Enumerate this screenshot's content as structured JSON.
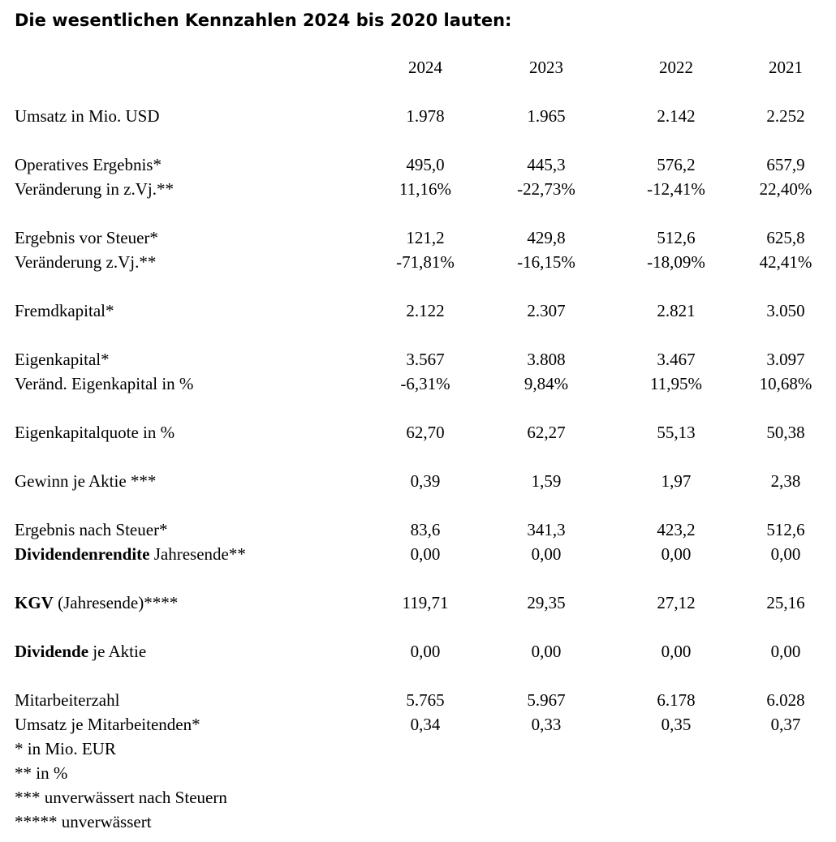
{
  "title": "Die wesentlichen Kennzahlen 2024 bis 2020 lauten:",
  "table": {
    "columns": [
      "2024",
      "2023",
      "2022",
      "2021"
    ],
    "groups": [
      [
        {
          "label": [
            {
              "text": "Umsatz in Mio. USD",
              "bold": false
            }
          ],
          "values": [
            "1.978",
            "1.965",
            "2.142",
            "2.252"
          ]
        }
      ],
      [
        {
          "label": [
            {
              "text": "Operatives Ergebnis*",
              "bold": false
            }
          ],
          "values": [
            "495,0",
            "445,3",
            "576,2",
            "657,9"
          ]
        },
        {
          "label": [
            {
              "text": "Veränderung in z.Vj.**",
              "bold": false
            }
          ],
          "values": [
            "11,16%",
            "-22,73%",
            "-12,41%",
            "22,40%"
          ]
        }
      ],
      [
        {
          "label": [
            {
              "text": "Ergebnis vor Steuer*",
              "bold": false
            }
          ],
          "values": [
            "121,2",
            "429,8",
            "512,6",
            "625,8"
          ]
        },
        {
          "label": [
            {
              "text": "Veränderung z.Vj.**",
              "bold": false
            }
          ],
          "values": [
            "-71,81%",
            "-16,15%",
            "-18,09%",
            "42,41%"
          ]
        }
      ],
      [
        {
          "label": [
            {
              "text": "Fremdkapital*",
              "bold": false
            }
          ],
          "values": [
            "2.122",
            "2.307",
            "2.821",
            "3.050"
          ]
        }
      ],
      [
        {
          "label": [
            {
              "text": "Eigenkapital*",
              "bold": false
            }
          ],
          "values": [
            "3.567",
            "3.808",
            "3.467",
            "3.097"
          ]
        },
        {
          "label": [
            {
              "text": "Veränd. Eigenkapital in %",
              "bold": false
            }
          ],
          "values": [
            "-6,31%",
            "9,84%",
            "11,95%",
            "10,68%"
          ]
        }
      ],
      [
        {
          "label": [
            {
              "text": "Eigenkapitalquote in %",
              "bold": false
            }
          ],
          "values": [
            "62,70",
            "62,27",
            "55,13",
            "50,38"
          ]
        }
      ],
      [
        {
          "label": [
            {
              "text": "Gewinn je Aktie ***",
              "bold": false
            }
          ],
          "values": [
            "0,39",
            "1,59",
            "1,97",
            "2,38"
          ]
        }
      ],
      [
        {
          "label": [
            {
              "text": "Ergebnis nach Steuer*",
              "bold": false
            }
          ],
          "values": [
            "83,6",
            "341,3",
            "423,2",
            "512,6"
          ]
        },
        {
          "label": [
            {
              "text": "Dividendenrendite",
              "bold": true
            },
            {
              "text": " Jahresende**",
              "bold": false
            }
          ],
          "values": [
            "0,00",
            "0,00",
            "0,00",
            "0,00"
          ]
        }
      ],
      [
        {
          "label": [
            {
              "text": "KGV",
              "bold": true
            },
            {
              "text": " (Jahresende)****",
              "bold": false
            }
          ],
          "values": [
            "119,71",
            "29,35",
            "27,12",
            "25,16"
          ]
        }
      ],
      [
        {
          "label": [
            {
              "text": "Dividende",
              "bold": true
            },
            {
              "text": " je Aktie",
              "bold": false
            }
          ],
          "values": [
            "0,00",
            "0,00",
            "0,00",
            "0,00"
          ]
        }
      ],
      [
        {
          "label": [
            {
              "text": "Mitarbeiterzahl",
              "bold": false
            }
          ],
          "values": [
            "5.765",
            "5.967",
            "6.178",
            "6.028"
          ]
        },
        {
          "label": [
            {
              "text": "Umsatz je Mitarbeitenden*",
              "bold": false
            }
          ],
          "values": [
            "0,34",
            "0,33",
            "0,35",
            "0,37"
          ]
        }
      ]
    ]
  },
  "footnotes": [
    "* in Mio. EUR",
    "** in %",
    "*** unverwässert nach Steuern",
    "***** unverwässert"
  ]
}
